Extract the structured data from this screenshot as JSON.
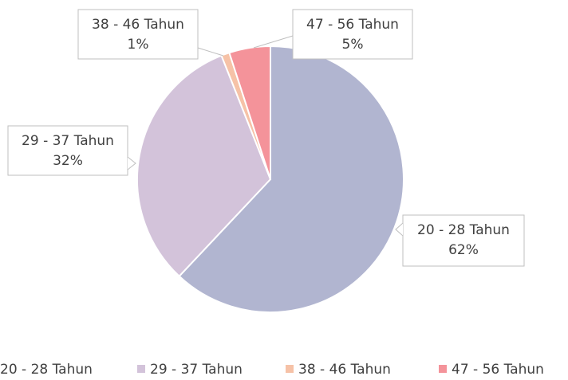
{
  "chart_data": {
    "type": "pie",
    "categories": [
      "20 - 28 Tahun",
      "29 - 37 Tahun",
      "38 - 46 Tahun",
      "47 - 56 Tahun"
    ],
    "values": [
      62,
      32,
      1,
      5
    ],
    "value_labels": [
      "62%",
      "32%",
      "1%",
      "5%"
    ],
    "colors": [
      "#b1b5d0",
      "#d3c3da",
      "#f6c2a7",
      "#f4939a"
    ],
    "legend": "bottom"
  }
}
